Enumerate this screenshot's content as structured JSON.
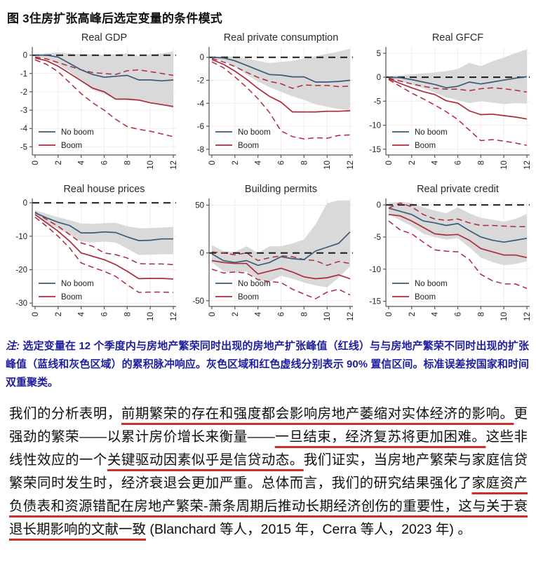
{
  "page": {
    "title": "图 3住房扩张高峰后选定变量的条件模式"
  },
  "figure": {
    "legend": {
      "no_boom": "No boom",
      "boom": "Boom"
    },
    "colors": {
      "no_boom": "#3b5a77",
      "boom": "#ad2a3c",
      "band": "#d9d9d9",
      "grid": "#f6e9e9",
      "zero_line": "#1a1a1a",
      "axis": "#555555",
      "tick_text": "#222222",
      "title_text": "#2b2b2b"
    }
  },
  "chart_data": [
    {
      "type": "line",
      "title": "Real GDP",
      "x": [
        0,
        1,
        2,
        3,
        4,
        5,
        6,
        7,
        8,
        9,
        10,
        11,
        12
      ],
      "xticks": [
        0,
        2,
        4,
        6,
        8,
        10,
        12
      ],
      "yticks": [
        0,
        -1,
        -2,
        -3,
        -4,
        -5
      ],
      "ylim": [
        -5.45,
        0.45
      ],
      "band_upper": [
        0.05,
        0.1,
        0.15,
        0.1,
        0.05,
        0.05,
        0,
        0.05,
        0.1,
        -0.05,
        0.05,
        0.1,
        0.2
      ],
      "band_lower": [
        -0.05,
        -0.2,
        -0.5,
        -0.9,
        -1.4,
        -1.9,
        -2.1,
        -2.4,
        -2.45,
        -2.5,
        -2.55,
        -2.7,
        -2.9
      ],
      "no_boom": [
        0,
        0,
        -0.1,
        -0.45,
        -0.8,
        -1.05,
        -1.2,
        -1.15,
        -1.1,
        -1.35,
        -1.35,
        -1.4,
        -1.35
      ],
      "boom": [
        -0.15,
        -0.3,
        -0.6,
        -1.0,
        -1.4,
        -1.8,
        -2.0,
        -2.4,
        -2.4,
        -2.45,
        -2.6,
        -2.7,
        -2.8
      ],
      "boom_ci_upper": [
        -0.1,
        -0.2,
        -0.4,
        -0.6,
        -0.8,
        -0.95,
        -1.0,
        -1.05,
        -0.85,
        -0.8,
        -0.9,
        -1.0,
        -1.1
      ],
      "boom_ci_lower": [
        -0.25,
        -0.5,
        -0.9,
        -1.5,
        -2.1,
        -2.6,
        -3.0,
        -3.5,
        -3.9,
        -4.05,
        -4.15,
        -4.3,
        -4.45
      ]
    },
    {
      "type": "line",
      "title": "Real private consumption",
      "x": [
        0,
        1,
        2,
        3,
        4,
        5,
        6,
        7,
        8,
        9,
        10,
        11,
        12
      ],
      "xticks": [
        0,
        2,
        4,
        6,
        8,
        10,
        12
      ],
      "yticks": [
        0,
        -2,
        -4,
        -6,
        -8
      ],
      "ylim": [
        -8.5,
        0.9
      ],
      "band_upper": [
        0.05,
        0.1,
        0.05,
        -0.1,
        -0.3,
        -0.5,
        -0.4,
        -0.3,
        -0.1,
        0.1,
        0.3,
        0.5,
        0.75
      ],
      "band_lower": [
        -0.05,
        -0.3,
        -0.8,
        -1.5,
        -2.1,
        -2.6,
        -3.0,
        -3.4,
        -3.7,
        -4.1,
        -4.3,
        -4.5,
        -4.6
      ],
      "no_boom": [
        0,
        -0.05,
        -0.3,
        -0.7,
        -1.1,
        -1.5,
        -1.55,
        -1.7,
        -1.7,
        -2.15,
        -2.15,
        -2.1,
        -2.0
      ],
      "boom": [
        -0.2,
        -0.6,
        -1.2,
        -1.9,
        -2.7,
        -3.4,
        -3.9,
        -4.75,
        -4.75,
        -4.75,
        -4.7,
        -4.7,
        -4.65
      ],
      "boom_ci_upper": [
        -0.1,
        -0.4,
        -0.8,
        -1.3,
        -1.75,
        -2.1,
        -2.3,
        -2.7,
        -2.4,
        -2.45,
        -2.45,
        -2.55,
        -2.5
      ],
      "boom_ci_lower": [
        -0.4,
        -0.9,
        -1.7,
        -2.6,
        -3.6,
        -4.8,
        -6.4,
        -6.9,
        -7.1,
        -7.0,
        -7.05,
        -6.8,
        -6.75
      ]
    },
    {
      "type": "line",
      "title": "Real GFCF",
      "x": [
        0,
        1,
        2,
        3,
        4,
        5,
        6,
        7,
        8,
        9,
        10,
        11,
        12
      ],
      "xticks": [
        0,
        2,
        4,
        6,
        8,
        10,
        12
      ],
      "yticks": [
        5,
        0,
        -5,
        -10,
        -15
      ],
      "ylim": [
        -16.2,
        6.3
      ],
      "band_upper": [
        0.2,
        0.4,
        0.6,
        0.8,
        1.0,
        1.3,
        1.7,
        3.0,
        2.3,
        3.3,
        4.1,
        5.0,
        5.8
      ],
      "band_lower": [
        -0.3,
        -0.8,
        -1.5,
        -2.3,
        -3.2,
        -4.2,
        -4.8,
        -5.4,
        -5.0,
        -5.3,
        -5.6,
        -5.4,
        -5.5
      ],
      "no_boom": [
        0,
        -0.1,
        -0.5,
        -1.0,
        -1.5,
        -2.2,
        -1.9,
        -1.0,
        -1.4,
        -1.0,
        -0.6,
        -0.2,
        0.1
      ],
      "boom": [
        -0.3,
        -1.3,
        -2.2,
        -3.0,
        -3.6,
        -4.9,
        -5.4,
        -7.0,
        -7.8,
        -7.7,
        -8.0,
        -8.3,
        -8.7
      ],
      "boom_ci_upper": [
        -0.2,
        -0.8,
        -1.4,
        -1.9,
        -2.3,
        -2.5,
        -2.5,
        -2.8,
        -2.4,
        -2.2,
        -2.4,
        -2.7,
        -3.1
      ],
      "boom_ci_lower": [
        -0.5,
        -1.9,
        -3.3,
        -4.5,
        -5.8,
        -7.2,
        -8.8,
        -11.0,
        -13.2,
        -13.0,
        -13.3,
        -13.7,
        -14.2
      ]
    },
    {
      "type": "line",
      "title": "Real house prices",
      "x": [
        0,
        1,
        2,
        3,
        4,
        5,
        6,
        7,
        8,
        9,
        10,
        11,
        12
      ],
      "xticks": [
        0,
        2,
        4,
        6,
        8,
        10,
        12
      ],
      "yticks": [
        0,
        -10,
        -20,
        -30
      ],
      "ylim": [
        -31,
        1.3
      ],
      "band_upper": [
        -2.2,
        -3.3,
        -4.3,
        -5.2,
        -6.2,
        -6.3,
        -6.1,
        -6.0,
        -7.0,
        -7.6,
        -7.6,
        -7.4,
        -7.2
      ],
      "band_lower": [
        -3.8,
        -6.0,
        -7.8,
        -9.5,
        -11.6,
        -11.8,
        -11.6,
        -11.9,
        -13.7,
        -15.6,
        -15.5,
        -15.4,
        -15.4
      ],
      "no_boom": [
        -3.0,
        -4.5,
        -5.8,
        -6.8,
        -9.0,
        -9.0,
        -8.7,
        -8.9,
        -10.2,
        -11.3,
        -11.2,
        -10.8,
        -10.8
      ],
      "boom": [
        -3.5,
        -6.0,
        -8.5,
        -11.5,
        -15.0,
        -16.0,
        -17.0,
        -18.5,
        -20.5,
        -22.7,
        -22.6,
        -22.6,
        -22.8
      ],
      "boom_ci_upper": [
        -2.8,
        -5.0,
        -7.0,
        -9.5,
        -12.0,
        -13.0,
        -15.0,
        -15.5,
        -16.5,
        -18.2,
        -18.3,
        -18.3,
        -18.5
      ],
      "boom_ci_lower": [
        -4.3,
        -7.0,
        -10.0,
        -13.5,
        -18.0,
        -19.3,
        -20.5,
        -22.0,
        -24.5,
        -26.8,
        -26.7,
        -26.7,
        -26.8
      ]
    },
    {
      "type": "line",
      "title": "Building permits",
      "x": [
        0,
        1,
        2,
        3,
        4,
        5,
        6,
        7,
        8,
        9,
        10,
        11,
        12
      ],
      "xticks": [
        0,
        2,
        4,
        6,
        8,
        10,
        12
      ],
      "yticks": [
        50,
        0,
        -50
      ],
      "ylim": [
        -56,
        57
      ],
      "band_upper": [
        8,
        2,
        1,
        7,
        0,
        7,
        7,
        10,
        14,
        30,
        52,
        55,
        55
      ],
      "band_lower": [
        -10,
        -19,
        -21,
        -19,
        -28,
        -30,
        -24,
        -27,
        -31,
        -34,
        -36,
        -26,
        -14
      ],
      "no_boom": [
        -1,
        -8,
        -10,
        -8,
        -13,
        -10,
        -4,
        -6,
        -7,
        2,
        6,
        10,
        22
      ],
      "boom": [
        -8,
        -10,
        -11,
        -11,
        -22,
        -19,
        -16,
        -20,
        -25,
        -27,
        -26,
        -23,
        -27
      ],
      "boom_ci_upper": [
        1,
        0,
        -2,
        0,
        -8,
        -5,
        -3,
        -4,
        -7,
        -8,
        -13,
        -9,
        -11
      ],
      "boom_ci_lower": [
        -17,
        -21,
        -20,
        -21,
        -28,
        -30,
        -31,
        -38,
        -43,
        -48,
        -41,
        -38,
        -44
      ]
    },
    {
      "type": "line",
      "title": "Real private credit",
      "x": [
        0,
        1,
        2,
        3,
        4,
        5,
        6,
        7,
        8,
        9,
        10,
        11,
        12
      ],
      "xticks": [
        0,
        2,
        4,
        6,
        8,
        10,
        12
      ],
      "yticks": [
        0,
        -5,
        -10,
        -15
      ],
      "ylim": [
        -15.8,
        1.0
      ],
      "band_upper": [
        0.3,
        0.5,
        0.3,
        -0.4,
        -0.9,
        -1.3,
        -0.4,
        -1.3,
        -2.0,
        -2.3,
        -2.6,
        -2.2,
        -1.4
      ],
      "band_lower": [
        -1.4,
        -2.4,
        -3.3,
        -4.5,
        -5.0,
        -5.4,
        -5.2,
        -6.6,
        -8.2,
        -8.9,
        -9.4,
        -9.2,
        -8.8
      ],
      "no_boom": [
        -0.5,
        -1.0,
        -1.5,
        -2.5,
        -2.8,
        -3.2,
        -2.9,
        -4.0,
        -5.0,
        -5.5,
        -5.8,
        -5.5,
        -5.2
      ],
      "boom": [
        -1.5,
        -1.7,
        -2.5,
        -3.5,
        -4.5,
        -4.7,
        -4.6,
        -5.5,
        -6.8,
        -7.3,
        -7.8,
        -7.8,
        -8.2
      ],
      "boom_ci_upper": [
        -0.5,
        0.3,
        -0.3,
        -1.5,
        -2.2,
        -2.4,
        -2.2,
        -2.8,
        -3.2,
        -3.2,
        -3.3,
        -3.4,
        -3.4
      ],
      "boom_ci_lower": [
        -2.5,
        -3.9,
        -4.5,
        -5.8,
        -7.0,
        -7.2,
        -7.3,
        -8.5,
        -10.8,
        -11.8,
        -12.3,
        -12.3,
        -13.0
      ]
    }
  ],
  "note": {
    "label": "注: ",
    "text": "选定变量在 12 个季度内与房地产繁荣同时出现的房地产扩张峰值（红线）与与房地产繁荣不同时出现的扩张峰值（蓝线和灰色区域）的累积脉冲响应。灰色区域和红色虚线分别表示 90% 置信区间。标准误差按国家和时间双重聚类。"
  },
  "paragraph": {
    "underline_color": "#cc2f28",
    "runs": [
      {
        "text": "我们的分析表明，",
        "u": false
      },
      {
        "text": "前期繁荣的存在和强度都会影响房地产萎缩对实体经济的影响。",
        "u": true
      },
      {
        "text": "更强劲的繁荣——以累计房价增长来衡量——",
        "u": false
      },
      {
        "text": "一旦结束，经济复苏将更加困难。",
        "u": true
      },
      {
        "text": "这些非线性效应的一个",
        "u": false
      },
      {
        "text": "关键驱动因素似乎是信贷动态。",
        "u": true
      },
      {
        "text": "我们证实，当房地产繁荣与家庭信贷繁荣同时发生时，经济衰退会更加严重。总体而言，我们的研究结果强化了",
        "u": false
      },
      {
        "text": "家庭资产负债表和资源错配在房地产繁荣-萧条周期后推动长期经济创伤的重要性，这与关于衰退长期影响的文献一致",
        "u": true
      },
      {
        "text": " (Blanchard 等人，2015 年，Cerra 等人，2023 年) 。",
        "u": false
      }
    ]
  }
}
